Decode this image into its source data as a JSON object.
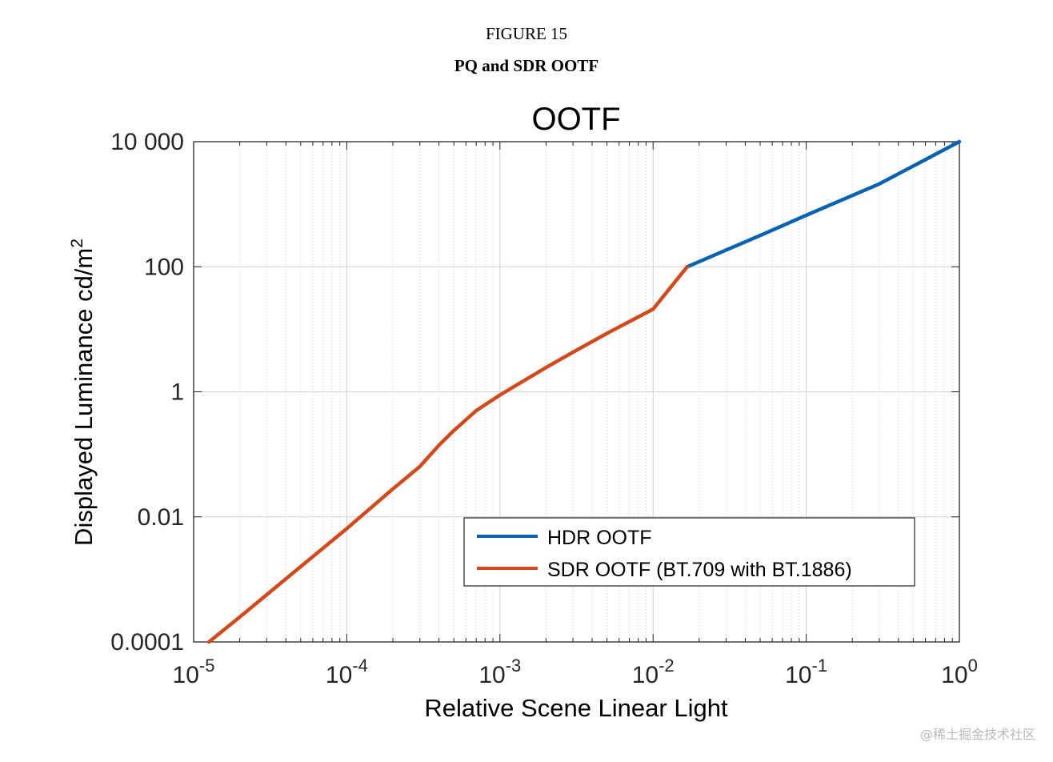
{
  "figure": {
    "number": "FIGURE 15",
    "caption": "PQ and SDR OOTF"
  },
  "watermark": "@稀土掘金技术社区",
  "chart_data": {
    "type": "line",
    "title": "OOTF",
    "xlabel": "Relative Scene Linear Light",
    "ylabel": "Displayed Luminance cd/m",
    "ylabel_superscript": "2",
    "x_scale": "log",
    "y_scale": "log",
    "xlim": [
      1e-05,
      1
    ],
    "ylim": [
      0.0001,
      10000
    ],
    "x_ticks": [
      {
        "value": 1e-05,
        "base": "10",
        "exp": "-5"
      },
      {
        "value": 0.0001,
        "base": "10",
        "exp": "-4"
      },
      {
        "value": 0.001,
        "base": "10",
        "exp": "-3"
      },
      {
        "value": 0.01,
        "base": "10",
        "exp": "-2"
      },
      {
        "value": 0.1,
        "base": "10",
        "exp": "-1"
      },
      {
        "value": 1,
        "base": "10",
        "exp": "0"
      }
    ],
    "y_ticks": [
      {
        "value": 0.0001,
        "label": "0.0001"
      },
      {
        "value": 0.01,
        "label": "0.01"
      },
      {
        "value": 1,
        "label": "1"
      },
      {
        "value": 100,
        "label": "100"
      },
      {
        "value": 10000,
        "label": "10 000"
      }
    ],
    "grid": true,
    "legend_position": "bottom-right",
    "series": [
      {
        "name": "HDR OOTF",
        "color": "#0a62b0",
        "x": [
          0.0167,
          0.05,
          0.1,
          0.3,
          1.0
        ],
        "y": [
          100,
          316,
          667,
          2110,
          10000
        ]
      },
      {
        "name": "SDR OOTF (BT.709 with BT.1886)",
        "color": "#d24a1c",
        "x": [
          1.26e-05,
          2e-05,
          5e-05,
          0.0001,
          0.0002,
          0.0003,
          0.0004,
          0.0005,
          0.0007,
          0.001,
          0.002,
          0.003,
          0.005,
          0.01,
          0.0167
        ],
        "y": [
          0.0001,
          0.00025,
          0.0016,
          0.0065,
          0.028,
          0.0638,
          0.14,
          0.24,
          0.5,
          0.89,
          2.44,
          4.3,
          8.6,
          21,
          100
        ]
      }
    ]
  }
}
